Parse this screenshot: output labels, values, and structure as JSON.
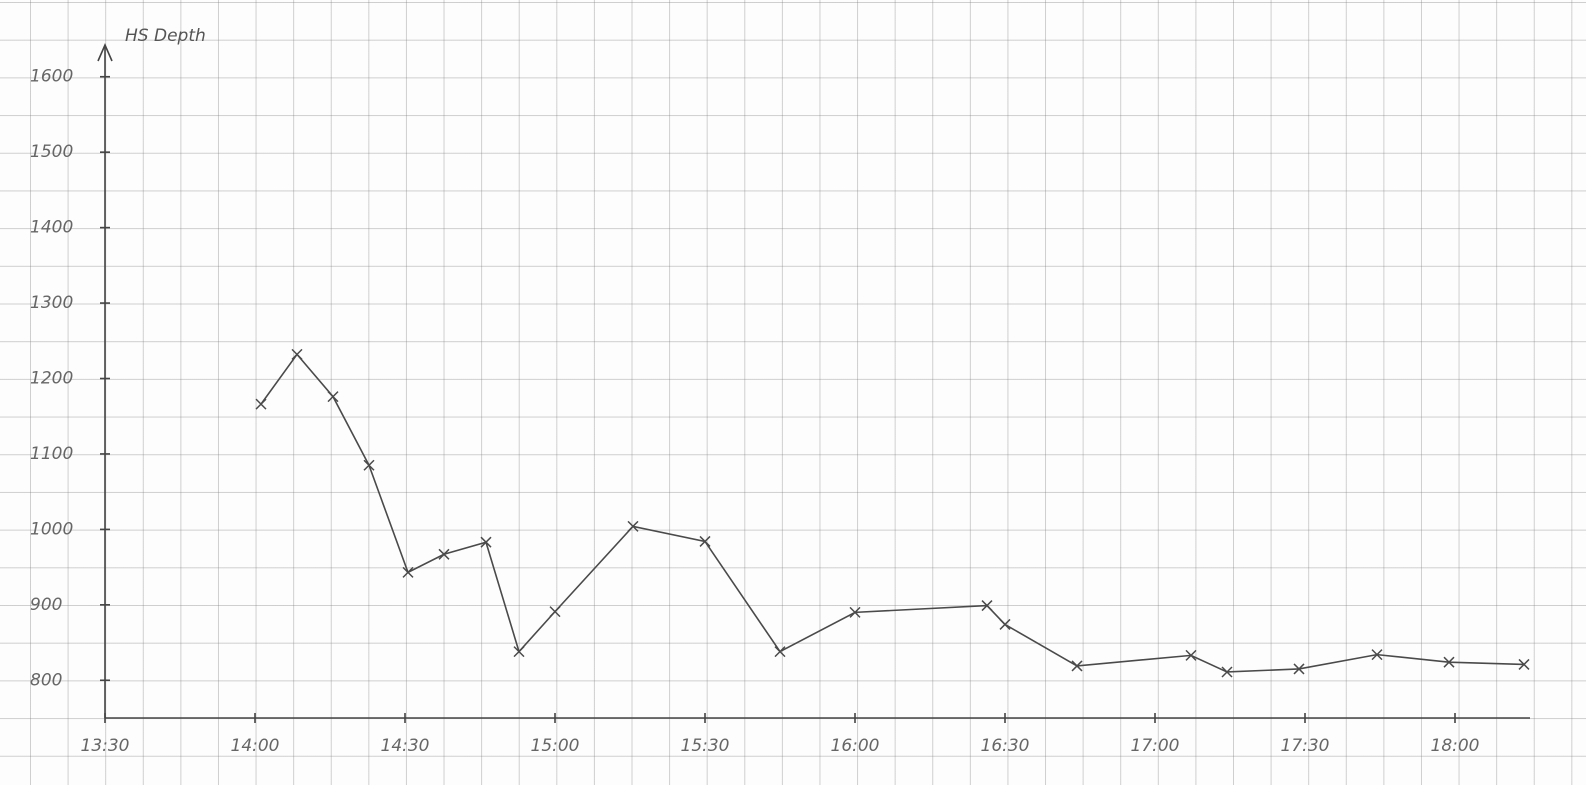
{
  "chart_data": {
    "type": "line",
    "title": "HS Depth",
    "x": [
      14.02,
      14.14,
      14.26,
      14.38,
      14.51,
      14.63,
      14.77,
      14.88,
      15.0,
      15.26,
      15.5,
      15.75,
      16.0,
      16.44,
      16.5,
      16.74,
      17.12,
      17.24,
      17.48,
      17.74,
      17.98,
      18.23
    ],
    "series": [
      {
        "color": "#4a4a4a",
        "values": [
          1166,
          1232,
          1176,
          1085,
          943,
          967,
          983,
          838,
          891,
          1004,
          984,
          838,
          890,
          899,
          874,
          819,
          833,
          811,
          815,
          834,
          824,
          821
        ]
      }
    ],
    "xlim": [
      13.5,
      18.25
    ],
    "xticks": [
      {
        "value": 13.5,
        "label": "13:30"
      },
      {
        "value": 14,
        "label": "14:00"
      },
      {
        "value": 14.5,
        "label": "14:30"
      },
      {
        "value": 15,
        "label": "15:00"
      },
      {
        "value": 15.5,
        "label": "15:30"
      },
      {
        "value": 16,
        "label": "16:00"
      },
      {
        "value": 16.5,
        "label": "16:30"
      },
      {
        "value": 17,
        "label": "17:00"
      },
      {
        "value": 17.5,
        "label": "17:30"
      },
      {
        "value": 18,
        "label": "18:00"
      }
    ],
    "ylim": [
      750,
      1650
    ],
    "yticks": [
      800,
      900,
      1000,
      1100,
      1200,
      1300,
      1400,
      1500,
      1600
    ]
  }
}
